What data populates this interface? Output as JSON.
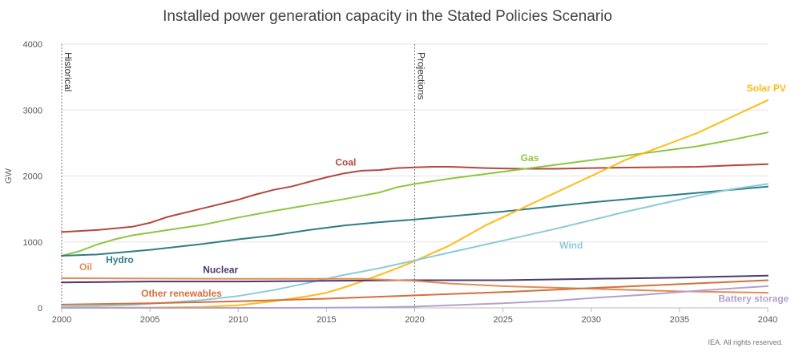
{
  "chart_data": {
    "type": "line",
    "title": "Installed power generation capacity in the Stated Policies Scenario",
    "ylabel": "GW",
    "xlabel": "",
    "xlim": [
      2000,
      2040
    ],
    "ylim": [
      0,
      4000
    ],
    "x_ticks": [
      2000,
      2005,
      2010,
      2015,
      2020,
      2025,
      2030,
      2035,
      2040
    ],
    "y_ticks": [
      0,
      1000,
      2000,
      3000,
      4000
    ],
    "grid": "horizontal",
    "credit": "IEA. All rights reserved.",
    "markers": [
      {
        "x": 2000,
        "label": "Historical"
      },
      {
        "x": 2020,
        "label": "Projections"
      }
    ],
    "series": [
      {
        "name": "Coal",
        "color": "#b5473f",
        "x": [
          2000,
          2002,
          2004,
          2005,
          2006,
          2008,
          2010,
          2011,
          2012,
          2013,
          2014,
          2015,
          2016,
          2017,
          2018,
          2019,
          2020,
          2021,
          2022,
          2024,
          2026,
          2028,
          2030,
          2033,
          2036,
          2038,
          2040
        ],
        "y": [
          1150,
          1180,
          1230,
          1290,
          1380,
          1510,
          1640,
          1720,
          1790,
          1840,
          1910,
          1980,
          2040,
          2080,
          2090,
          2120,
          2130,
          2140,
          2140,
          2120,
          2110,
          2110,
          2120,
          2130,
          2140,
          2160,
          2180
        ],
        "label_at": [
          2015.5,
          2160
        ]
      },
      {
        "name": "Gas",
        "color": "#8dc63f",
        "x": [
          2000,
          2001,
          2002,
          2003,
          2004,
          2005,
          2006,
          2008,
          2010,
          2012,
          2014,
          2016,
          2018,
          2019,
          2020,
          2022,
          2024,
          2026,
          2028,
          2030,
          2032,
          2034,
          2036,
          2038,
          2040
        ],
        "y": [
          790,
          860,
          960,
          1040,
          1100,
          1140,
          1180,
          1260,
          1370,
          1470,
          1560,
          1650,
          1750,
          1830,
          1880,
          1960,
          2030,
          2100,
          2170,
          2240,
          2310,
          2380,
          2450,
          2550,
          2660
        ],
        "label_at": [
          2026,
          2225
        ]
      },
      {
        "name": "Hydro",
        "color": "#2e7d87",
        "x": [
          2000,
          2002,
          2005,
          2008,
          2010,
          2012,
          2014,
          2016,
          2018,
          2020,
          2025,
          2030,
          2035,
          2040
        ],
        "y": [
          790,
          810,
          880,
          970,
          1040,
          1100,
          1180,
          1250,
          1300,
          1340,
          1460,
          1600,
          1720,
          1840
        ],
        "label_at": [
          2002.5,
          680
        ]
      },
      {
        "name": "Solar PV",
        "color": "#fdbb13",
        "x": [
          2000,
          2005,
          2008,
          2010,
          2012,
          2014,
          2015,
          2016,
          2017,
          2018,
          2019,
          2020,
          2022,
          2024,
          2026,
          2028,
          2030,
          2032,
          2034,
          2036,
          2038,
          2040
        ],
        "y": [
          5,
          5,
          15,
          40,
          100,
          180,
          230,
          310,
          400,
          500,
          600,
          710,
          950,
          1250,
          1500,
          1750,
          2000,
          2250,
          2450,
          2650,
          2900,
          3150
        ],
        "label_at": [
          2038.8,
          3280
        ]
      },
      {
        "name": "Wind",
        "color": "#8ccadb",
        "x": [
          2000,
          2002,
          2004,
          2006,
          2008,
          2010,
          2012,
          2014,
          2016,
          2018,
          2020,
          2022,
          2024,
          2026,
          2028,
          2030,
          2032,
          2034,
          2036,
          2038,
          2040
        ],
        "y": [
          20,
          30,
          45,
          80,
          120,
          180,
          270,
          380,
          500,
          600,
          720,
          840,
          960,
          1080,
          1200,
          1330,
          1460,
          1580,
          1700,
          1800,
          1880
        ],
        "label_at": [
          2028.2,
          900
        ]
      },
      {
        "name": "Nuclear",
        "color": "#4b3a6b",
        "x": [
          2000,
          2005,
          2010,
          2015,
          2020,
          2025,
          2030,
          2035,
          2040
        ],
        "y": [
          385,
          400,
          400,
          410,
          420,
          420,
          440,
          460,
          490
        ],
        "label_at": [
          2008,
          530
        ]
      },
      {
        "name": "Oil",
        "color": "#e58a57",
        "x": [
          2000,
          2005,
          2010,
          2015,
          2017,
          2020,
          2022,
          2025,
          2030,
          2035,
          2040
        ],
        "y": [
          450,
          445,
          440,
          440,
          440,
          410,
          370,
          330,
          290,
          250,
          230
        ],
        "label_at": [
          2001,
          570
        ]
      },
      {
        "name": "Other renewables",
        "color": "#d4703c",
        "x": [
          2000,
          2005,
          2010,
          2015,
          2020,
          2025,
          2030,
          2035,
          2040
        ],
        "y": [
          50,
          70,
          100,
          140,
          190,
          240,
          300,
          360,
          420
        ],
        "label_at": [
          2004.5,
          170
        ]
      },
      {
        "name": "Battery storage",
        "color": "#b4a0cc",
        "x": [
          2000,
          2010,
          2015,
          2018,
          2020,
          2022,
          2025,
          2028,
          2030,
          2033,
          2036,
          2040
        ],
        "y": [
          0,
          0,
          2,
          10,
          20,
          40,
          70,
          110,
          150,
          200,
          260,
          330
        ],
        "label_at": [
          2037.2,
          90
        ]
      }
    ]
  }
}
